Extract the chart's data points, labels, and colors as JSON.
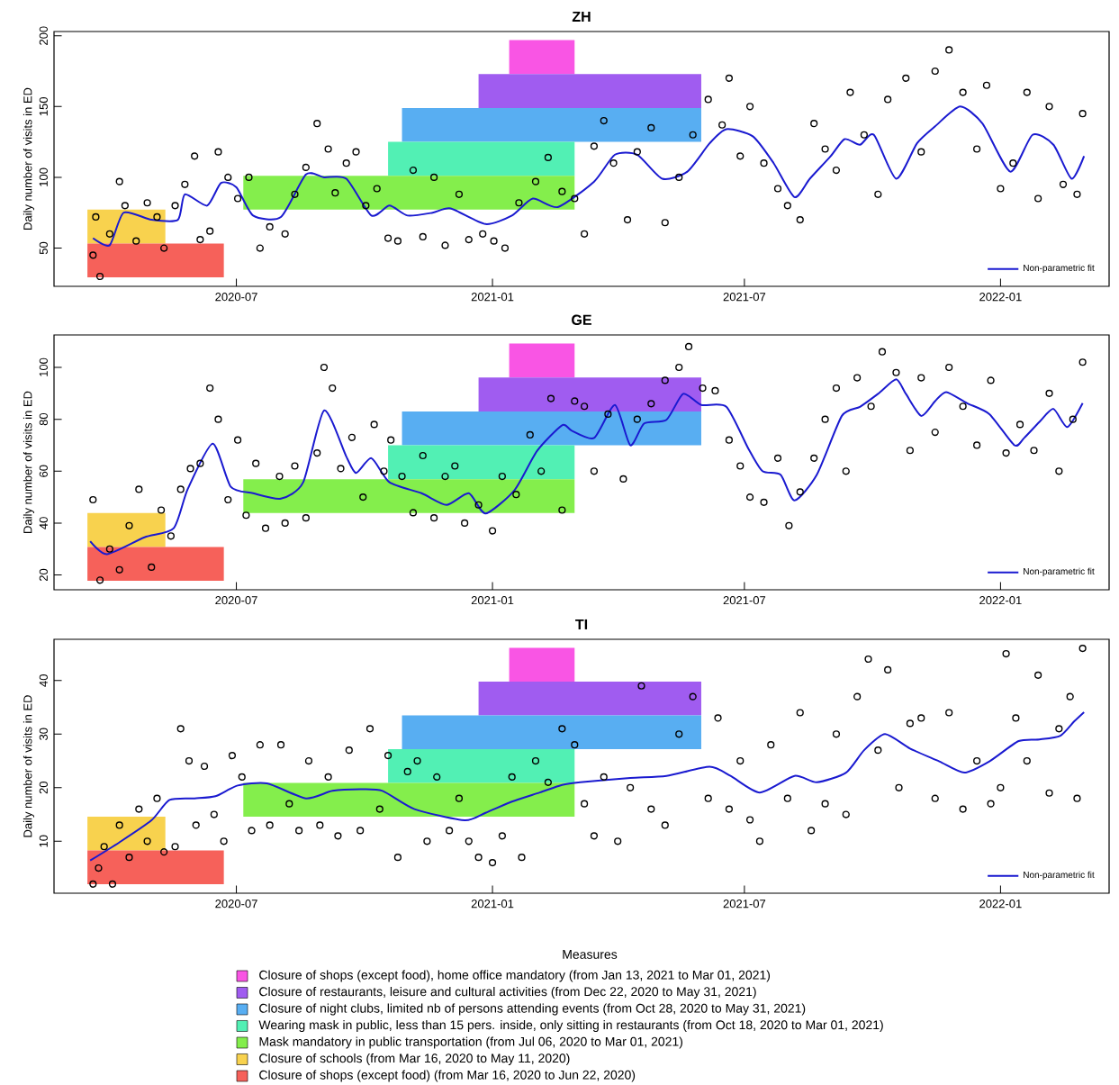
{
  "chart_data": [
    {
      "type": "scatter",
      "title": "ZH",
      "ylabel": "Daily number of visits in ED",
      "xlim": [
        "2020-02-21",
        "2022-03-20"
      ],
      "ylim": [
        23,
        203
      ],
      "xticks": [
        {
          "value": "2020-07-01",
          "label": "2020-07"
        },
        {
          "value": "2021-01-01",
          "label": "2021-01"
        },
        {
          "value": "2021-07-01",
          "label": "2021-07"
        },
        {
          "value": "2022-01-01",
          "label": "2022-01"
        }
      ],
      "yticks": [
        50,
        100,
        150,
        200
      ],
      "legend": "bottom right",
      "series": [
        {
          "type": "scatter",
          "color": "#000000",
          "marker": "circle",
          "x": [
            "2020-03-20",
            "2020-03-22",
            "2020-03-25",
            "2020-04-01",
            "2020-04-08",
            "2020-04-12",
            "2020-04-20",
            "2020-04-28",
            "2020-05-05",
            "2020-05-10",
            "2020-05-18",
            "2020-05-25",
            "2020-06-01",
            "2020-06-05",
            "2020-06-12",
            "2020-06-18",
            "2020-06-25",
            "2020-07-02",
            "2020-07-10",
            "2020-07-18",
            "2020-07-25",
            "2020-08-05",
            "2020-08-12",
            "2020-08-20",
            "2020-08-28",
            "2020-09-05",
            "2020-09-10",
            "2020-09-18",
            "2020-09-25",
            "2020-10-02",
            "2020-10-10",
            "2020-10-18",
            "2020-10-25",
            "2020-11-05",
            "2020-11-12",
            "2020-11-20",
            "2020-11-28",
            "2020-12-08",
            "2020-12-15",
            "2020-12-25",
            "2021-01-02",
            "2021-01-10",
            "2021-01-20",
            "2021-02-01",
            "2021-02-10",
            "2021-02-20",
            "2021-03-01",
            "2021-03-08",
            "2021-03-15",
            "2021-03-22",
            "2021-03-29",
            "2021-04-08",
            "2021-04-15",
            "2021-04-25",
            "2021-05-05",
            "2021-05-15",
            "2021-05-25",
            "2021-06-05",
            "2021-06-15",
            "2021-06-20",
            "2021-06-28",
            "2021-07-05",
            "2021-07-15",
            "2021-07-25",
            "2021-08-01",
            "2021-08-10",
            "2021-08-20",
            "2021-08-28",
            "2021-09-05",
            "2021-09-15",
            "2021-09-25",
            "2021-10-05",
            "2021-10-12",
            "2021-10-25",
            "2021-11-05",
            "2021-11-15",
            "2021-11-25",
            "2021-12-05",
            "2021-12-15",
            "2021-12-22",
            "2022-01-01",
            "2022-01-10",
            "2022-01-20",
            "2022-01-28",
            "2022-02-05",
            "2022-02-15",
            "2022-02-25",
            "2022-03-01"
          ],
          "values": [
            45,
            72,
            30,
            60,
            97,
            80,
            55,
            82,
            72,
            50,
            80,
            95,
            115,
            56,
            62,
            118,
            100,
            85,
            100,
            50,
            65,
            60,
            88,
            107,
            138,
            120,
            89,
            110,
            118,
            80,
            92,
            57,
            55,
            105,
            58,
            100,
            52,
            88,
            56,
            60,
            55,
            50,
            82,
            97,
            114,
            90,
            85,
            60,
            122,
            140,
            110,
            70,
            118,
            135,
            68,
            100,
            130,
            155,
            137,
            170,
            115,
            150,
            110,
            92,
            80,
            70,
            138,
            120,
            105,
            160,
            130,
            88,
            155,
            170,
            118,
            175,
            190,
            160,
            120,
            165,
            92,
            110,
            160,
            85,
            150,
            95,
            88,
            145
          ]
        },
        {
          "type": "line",
          "name": "Non-parametric fit",
          "color": "#1a1ad0",
          "marker": "none",
          "line_style": "solid",
          "x": [
            "2020-03-20",
            "2020-04-01",
            "2020-04-11",
            "2020-05-01",
            "2020-05-20",
            "2020-05-25",
            "2020-06-10",
            "2020-06-20",
            "2020-07-01",
            "2020-07-13",
            "2020-08-02",
            "2020-08-20",
            "2020-09-02",
            "2020-09-18",
            "2020-10-06",
            "2020-10-19",
            "2020-11-01",
            "2020-11-19",
            "2020-12-02",
            "2020-12-27",
            "2021-01-15",
            "2021-01-30",
            "2021-02-17",
            "2021-03-15",
            "2021-03-30",
            "2021-04-15",
            "2021-05-03",
            "2021-05-21",
            "2021-06-06",
            "2021-06-18",
            "2021-07-07",
            "2021-07-22",
            "2021-08-06",
            "2021-08-17",
            "2021-09-01",
            "2021-09-11",
            "2021-09-22",
            "2021-10-02",
            "2021-10-18",
            "2021-11-02",
            "2021-11-15",
            "2021-12-03",
            "2021-12-19",
            "2022-01-08",
            "2022-01-24",
            "2022-02-08",
            "2022-02-21",
            "2022-03-02"
          ],
          "values": [
            57,
            52,
            75,
            70,
            70,
            88,
            80,
            96,
            93,
            73,
            72,
            102,
            100,
            99,
            73,
            80,
            73,
            75,
            78,
            67,
            73,
            85,
            79,
            97,
            116,
            116,
            99,
            104,
            124,
            134,
            129,
            110,
            86,
            99,
            115,
            127,
            123,
            130,
            99,
            124,
            136,
            150,
            138,
            104,
            130,
            123,
            99,
            115
          ]
        }
      ],
      "bands": [
        {
          "axis": "x",
          "from": "2021-01-13",
          "to": "2021-03-01",
          "color": "#f955e4"
        },
        {
          "axis": "x",
          "from": "2020-12-22",
          "to": "2021-05-31",
          "color": "#a05cf0"
        },
        {
          "axis": "x",
          "from": "2020-10-28",
          "to": "2021-05-31",
          "color": "#58aef2"
        },
        {
          "axis": "x",
          "from": "2020-10-18",
          "to": "2021-03-01",
          "color": "#52f0b4"
        },
        {
          "axis": "x",
          "from": "2020-07-06",
          "to": "2021-03-01",
          "color": "#84ee4c"
        },
        {
          "axis": "x",
          "from": "2020-03-16",
          "to": "2020-05-11",
          "color": "#f8d24e"
        },
        {
          "axis": "x",
          "from": "2020-03-16",
          "to": "2020-06-22",
          "color": "#f6615a"
        }
      ]
    },
    {
      "type": "scatter",
      "title": "GE",
      "ylabel": "Daily number of visits in ED",
      "xlim": [
        "2020-02-21",
        "2022-03-20"
      ],
      "ylim": [
        14.3,
        112.5
      ],
      "xticks": [
        {
          "value": "2020-07-01",
          "label": "2020-07"
        },
        {
          "value": "2021-01-01",
          "label": "2021-01"
        },
        {
          "value": "2021-07-01",
          "label": "2021-07"
        },
        {
          "value": "2022-01-01",
          "label": "2022-01"
        }
      ],
      "yticks": [
        20,
        40,
        60,
        80,
        100
      ],
      "legend": "bottom right",
      "series": [
        {
          "type": "scatter",
          "color": "#000000",
          "marker": "circle",
          "x": [
            "2020-03-20",
            "2020-03-25",
            "2020-04-01",
            "2020-04-08",
            "2020-04-15",
            "2020-04-22",
            "2020-05-01",
            "2020-05-08",
            "2020-05-15",
            "2020-05-22",
            "2020-05-29",
            "2020-06-05",
            "2020-06-12",
            "2020-06-18",
            "2020-06-25",
            "2020-07-02",
            "2020-07-08",
            "2020-07-15",
            "2020-07-22",
            "2020-08-01",
            "2020-08-05",
            "2020-08-12",
            "2020-08-20",
            "2020-08-28",
            "2020-09-02",
            "2020-09-08",
            "2020-09-14",
            "2020-09-22",
            "2020-09-30",
            "2020-10-08",
            "2020-10-15",
            "2020-10-20",
            "2020-10-28",
            "2020-11-05",
            "2020-11-12",
            "2020-11-20",
            "2020-11-28",
            "2020-12-05",
            "2020-12-12",
            "2020-12-22",
            "2021-01-01",
            "2021-01-08",
            "2021-01-18",
            "2021-01-28",
            "2021-02-05",
            "2021-02-12",
            "2021-02-20",
            "2021-03-01",
            "2021-03-08",
            "2021-03-15",
            "2021-03-25",
            "2021-04-05",
            "2021-04-15",
            "2021-04-25",
            "2021-05-05",
            "2021-05-15",
            "2021-05-22",
            "2021-06-01",
            "2021-06-10",
            "2021-06-20",
            "2021-06-28",
            "2021-07-05",
            "2021-07-15",
            "2021-07-25",
            "2021-08-02",
            "2021-08-10",
            "2021-08-20",
            "2021-08-28",
            "2021-09-05",
            "2021-09-12",
            "2021-09-20",
            "2021-09-30",
            "2021-10-08",
            "2021-10-18",
            "2021-10-28",
            "2021-11-05",
            "2021-11-15",
            "2021-11-25",
            "2021-12-05",
            "2021-12-15",
            "2021-12-25",
            "2022-01-05",
            "2022-01-15",
            "2022-01-25",
            "2022-02-05",
            "2022-02-12",
            "2022-02-22",
            "2022-03-01"
          ],
          "values": [
            49,
            18,
            30,
            22,
            39,
            53,
            23,
            45,
            35,
            53,
            61,
            63,
            92,
            80,
            49,
            72,
            43,
            63,
            38,
            58,
            40,
            62,
            42,
            67,
            100,
            92,
            61,
            73,
            50,
            78,
            60,
            72,
            58,
            44,
            66,
            42,
            58,
            62,
            40,
            47,
            37,
            58,
            51,
            74,
            60,
            88,
            45,
            87,
            85,
            60,
            82,
            57,
            80,
            86,
            95,
            100,
            108,
            92,
            91,
            72,
            62,
            50,
            48,
            65,
            39,
            52,
            65,
            80,
            92,
            60,
            96,
            85,
            106,
            98,
            68,
            96,
            75,
            100,
            85,
            70,
            95,
            67,
            78,
            68,
            90,
            60,
            80,
            102
          ]
        },
        {
          "type": "line",
          "name": "Non-parametric fit",
          "color": "#1a1ad0",
          "marker": "none",
          "line_style": "solid",
          "x": [
            "2020-03-18",
            "2020-03-30",
            "2020-04-26",
            "2020-05-17",
            "2020-05-27",
            "2020-06-14",
            "2020-06-27",
            "2020-07-13",
            "2020-08-02",
            "2020-08-18",
            "2020-09-02",
            "2020-09-18",
            "2020-09-25",
            "2020-10-06",
            "2020-10-19",
            "2020-11-11",
            "2020-11-29",
            "2020-12-15",
            "2020-12-27",
            "2021-01-17",
            "2021-02-02",
            "2021-02-20",
            "2021-02-27",
            "2021-03-15",
            "2021-03-30",
            "2021-04-10",
            "2021-04-20",
            "2021-05-06",
            "2021-05-18",
            "2021-05-31",
            "2021-06-18",
            "2021-07-04",
            "2021-07-14",
            "2021-07-27",
            "2021-08-06",
            "2021-08-22",
            "2021-09-09",
            "2021-09-22",
            "2021-10-05",
            "2021-10-18",
            "2021-10-25",
            "2021-11-05",
            "2021-11-15",
            "2021-11-23",
            "2021-12-08",
            "2021-12-24",
            "2022-01-11",
            "2022-01-18",
            "2022-01-29",
            "2022-02-08",
            "2022-02-18",
            "2022-03-01"
          ],
          "values": [
            33,
            28,
            34.5,
            38,
            53,
            70.6,
            54,
            51.5,
            49.4,
            55.7,
            83.4,
            65.6,
            59.3,
            65,
            55.7,
            51.5,
            47,
            51.5,
            43.7,
            52.8,
            67.8,
            77.7,
            75.6,
            72.8,
            85.5,
            70,
            78.4,
            79.8,
            89.8,
            85.5,
            84.8,
            68.5,
            60,
            58.6,
            48.7,
            58.6,
            81.3,
            84.8,
            89.8,
            95.4,
            89.8,
            81.3,
            87,
            90.5,
            86.2,
            82,
            70,
            72.8,
            79,
            84,
            77,
            86.2
          ]
        }
      ],
      "bands": [
        {
          "axis": "x",
          "from": "2021-01-13",
          "to": "2021-03-01",
          "color": "#f955e4"
        },
        {
          "axis": "x",
          "from": "2020-12-22",
          "to": "2021-05-31",
          "color": "#a05cf0"
        },
        {
          "axis": "x",
          "from": "2020-10-28",
          "to": "2021-05-31",
          "color": "#58aef2"
        },
        {
          "axis": "x",
          "from": "2020-10-18",
          "to": "2021-03-01",
          "color": "#52f0b4"
        },
        {
          "axis": "x",
          "from": "2020-07-06",
          "to": "2021-03-01",
          "color": "#84ee4c"
        },
        {
          "axis": "x",
          "from": "2020-03-16",
          "to": "2020-05-11",
          "color": "#f8d24e"
        },
        {
          "axis": "x",
          "from": "2020-03-16",
          "to": "2020-06-22",
          "color": "#f6615a"
        }
      ]
    },
    {
      "type": "scatter",
      "title": "TI",
      "ylabel": "Daily number of visits in ED",
      "legend_title": "Measures",
      "xlim": [
        "2020-02-21",
        "2022-03-20"
      ],
      "ylim": [
        0.3,
        47.7
      ],
      "xticks": [
        {
          "value": "2020-07-01",
          "label": "2020-07"
        },
        {
          "value": "2021-01-01",
          "label": "2021-01"
        },
        {
          "value": "2021-07-01",
          "label": "2021-07"
        },
        {
          "value": "2022-01-01",
          "label": "2022-01"
        }
      ],
      "yticks": [
        10,
        20,
        30,
        40
      ],
      "legend": "bottom right",
      "series": [
        {
          "type": "scatter",
          "color": "#000000",
          "marker": "circle",
          "x": [
            "2020-03-20",
            "2020-03-24",
            "2020-03-28",
            "2020-04-03",
            "2020-04-08",
            "2020-04-15",
            "2020-04-22",
            "2020-04-28",
            "2020-05-05",
            "2020-05-10",
            "2020-05-18",
            "2020-05-22",
            "2020-05-28",
            "2020-06-02",
            "2020-06-08",
            "2020-06-15",
            "2020-06-22",
            "2020-06-28",
            "2020-07-05",
            "2020-07-12",
            "2020-07-18",
            "2020-07-25",
            "2020-08-02",
            "2020-08-08",
            "2020-08-15",
            "2020-08-22",
            "2020-08-30",
            "2020-09-05",
            "2020-09-12",
            "2020-09-20",
            "2020-09-28",
            "2020-10-05",
            "2020-10-12",
            "2020-10-18",
            "2020-10-25",
            "2020-11-01",
            "2020-11-08",
            "2020-11-15",
            "2020-11-22",
            "2020-12-01",
            "2020-12-08",
            "2020-12-15",
            "2020-12-22",
            "2021-01-01",
            "2021-01-08",
            "2021-01-15",
            "2021-01-22",
            "2021-02-01",
            "2021-02-10",
            "2021-02-20",
            "2021-03-01",
            "2021-03-08",
            "2021-03-15",
            "2021-03-22",
            "2021-04-01",
            "2021-04-10",
            "2021-04-18",
            "2021-04-25",
            "2021-05-05",
            "2021-05-15",
            "2021-05-25",
            "2021-06-05",
            "2021-06-12",
            "2021-06-20",
            "2021-06-28",
            "2021-07-05",
            "2021-07-12",
            "2021-07-20",
            "2021-08-01",
            "2021-08-10",
            "2021-08-18",
            "2021-08-28",
            "2021-09-05",
            "2021-09-12",
            "2021-09-20",
            "2021-09-28",
            "2021-10-05",
            "2021-10-12",
            "2021-10-20",
            "2021-10-28",
            "2021-11-05",
            "2021-11-15",
            "2021-11-25",
            "2021-12-05",
            "2021-12-15",
            "2021-12-25",
            "2022-01-01",
            "2022-01-05",
            "2022-01-12",
            "2022-01-20",
            "2022-01-28",
            "2022-02-05",
            "2022-02-12",
            "2022-02-20",
            "2022-02-25",
            "2022-03-01"
          ],
          "values": [
            2,
            5,
            9,
            2,
            13,
            7,
            16,
            10,
            18,
            8,
            9,
            31,
            25,
            13,
            24,
            15,
            10,
            26,
            22,
            12,
            28,
            13,
            28,
            17,
            12,
            25,
            13,
            22,
            11,
            27,
            12,
            31,
            16,
            26,
            7,
            23,
            25,
            10,
            22,
            12,
            18,
            10,
            7,
            6,
            11,
            22,
            7,
            25,
            21,
            31,
            28,
            17,
            11,
            22,
            10,
            20,
            39,
            16,
            13,
            30,
            37,
            18,
            33,
            16,
            25,
            14,
            10,
            28,
            18,
            34,
            12,
            17,
            30,
            15,
            37,
            44,
            27,
            42,
            20,
            32,
            33,
            18,
            34,
            16,
            25,
            17,
            20,
            45,
            33,
            25,
            41,
            19,
            31,
            37,
            18,
            46
          ]
        },
        {
          "type": "line",
          "name": "Non-parametric fit",
          "color": "#1a1ad0",
          "marker": "none",
          "line_style": "solid",
          "x": [
            "2020-03-18",
            "2020-04-08",
            "2020-05-01",
            "2020-05-14",
            "2020-06-01",
            "2020-06-16",
            "2020-07-02",
            "2020-07-23",
            "2020-08-20",
            "2020-09-08",
            "2020-09-28",
            "2020-10-14",
            "2020-11-06",
            "2020-12-12",
            "2020-12-27",
            "2021-01-15",
            "2021-02-04",
            "2021-02-20",
            "2021-03-05",
            "2021-04-10",
            "2021-05-06",
            "2021-06-06",
            "2021-06-21",
            "2021-07-12",
            "2021-08-06",
            "2021-08-22",
            "2021-09-12",
            "2021-09-25",
            "2021-10-10",
            "2021-10-28",
            "2021-11-18",
            "2021-12-06",
            "2021-12-24",
            "2022-01-14",
            "2022-01-29",
            "2022-02-13",
            "2022-02-23",
            "2022-03-02"
          ],
          "values": [
            6.4,
            9.8,
            13.9,
            17.7,
            18,
            18.4,
            20.4,
            20.8,
            18,
            19.4,
            19.7,
            19.4,
            16,
            13.9,
            15.3,
            17.4,
            19.1,
            20.5,
            21,
            21.8,
            22.2,
            23.9,
            22.2,
            19.1,
            22.2,
            21,
            22.8,
            27,
            30,
            27.3,
            24.9,
            22.8,
            24.9,
            28.7,
            29,
            29.7,
            32.4,
            34.1
          ]
        }
      ],
      "bands": [
        {
          "axis": "x",
          "from": "2021-01-13",
          "to": "2021-03-01",
          "color": "#f955e4",
          "label": "Closure of shops (except food), home office mandatory (from Jan 13, 2021 to Mar 01, 2021)"
        },
        {
          "axis": "x",
          "from": "2020-12-22",
          "to": "2021-05-31",
          "color": "#a05cf0",
          "label": "Closure of restaurants, leisure and cultural activities (from Dec 22, 2020 to May 31, 2021)"
        },
        {
          "axis": "x",
          "from": "2020-10-28",
          "to": "2021-05-31",
          "color": "#58aef2",
          "label": "Closure of night clubs, limited nb of persons attending events (from Oct 28, 2020 to May 31, 2021)"
        },
        {
          "axis": "x",
          "from": "2020-10-18",
          "to": "2021-03-01",
          "color": "#52f0b4",
          "label": "Wearing mask in public, less than 15 pers. inside, only sitting in restaurants (from Oct 18, 2020 to Mar 01, 2021)"
        },
        {
          "axis": "x",
          "from": "2020-07-06",
          "to": "2021-03-01",
          "color": "#84ee4c",
          "label": "Mask mandatory in public transportation (from Jul 06, 2020 to Mar 01, 2021)"
        },
        {
          "axis": "x",
          "from": "2020-03-16",
          "to": "2020-05-11",
          "color": "#f8d24e",
          "label": "Closure of schools (from Mar 16, 2020 to May 11, 2020)"
        },
        {
          "axis": "x",
          "from": "2020-03-16",
          "to": "2020-06-22",
          "color": "#f6615a",
          "label": "Closure of shops (except food) (from Mar 16, 2020 to Jun 22, 2020)"
        }
      ]
    }
  ]
}
